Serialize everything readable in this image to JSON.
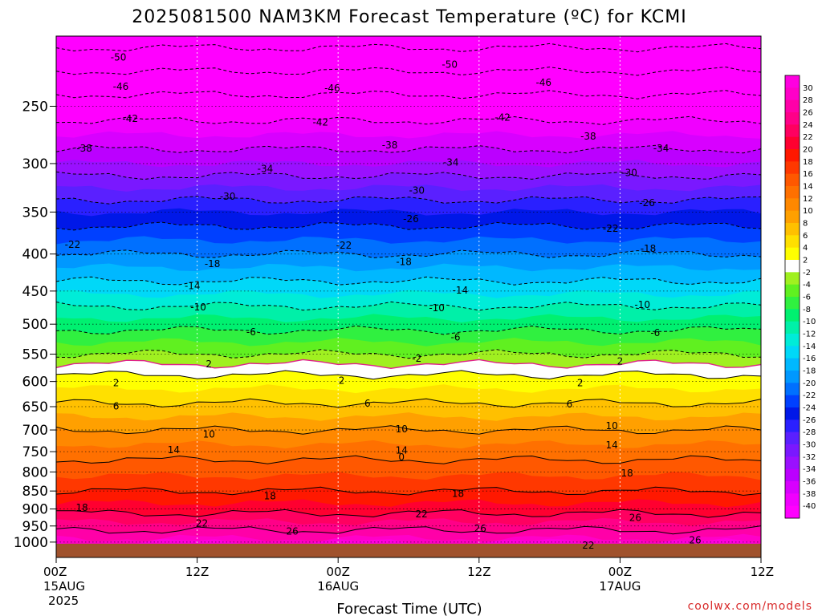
{
  "colors": {
    "bands": [
      {
        "t": -40,
        "c": "#ff00ff"
      },
      {
        "t": -38,
        "c": "#f000ff"
      },
      {
        "t": -36,
        "c": "#d800ff"
      },
      {
        "t": -34,
        "c": "#bb00ff"
      },
      {
        "t": -32,
        "c": "#9a10ff"
      },
      {
        "t": -30,
        "c": "#7a18ff"
      },
      {
        "t": -28,
        "c": "#5a20ff"
      },
      {
        "t": -26,
        "c": "#2a20ff"
      },
      {
        "t": -24,
        "c": "#0018e8"
      },
      {
        "t": -22,
        "c": "#0040ff"
      },
      {
        "t": -20,
        "c": "#0070ff"
      },
      {
        "t": -18,
        "c": "#0098ff"
      },
      {
        "t": -16,
        "c": "#00b8ff"
      },
      {
        "t": -14,
        "c": "#00d8f8"
      },
      {
        "t": -12,
        "c": "#00ecd8"
      },
      {
        "t": -10,
        "c": "#00f0a8"
      },
      {
        "t": -8,
        "c": "#00f070"
      },
      {
        "t": -6,
        "c": "#30f040"
      },
      {
        "t": -4,
        "c": "#60f020"
      },
      {
        "t": -2,
        "c": "#a0f020"
      },
      {
        "t": 0,
        "c": "#ffffff"
      },
      {
        "t": 2,
        "c": "#ffff00"
      },
      {
        "t": 4,
        "c": "#ffe000"
      },
      {
        "t": 6,
        "c": "#ffc000"
      },
      {
        "t": 8,
        "c": "#ffa000"
      },
      {
        "t": 10,
        "c": "#ff8800"
      },
      {
        "t": 12,
        "c": "#ff7000"
      },
      {
        "t": 14,
        "c": "#ff5800"
      },
      {
        "t": 16,
        "c": "#ff3800"
      },
      {
        "t": 18,
        "c": "#ff1800"
      },
      {
        "t": 20,
        "c": "#ff0030"
      },
      {
        "t": 22,
        "c": "#ff0060"
      },
      {
        "t": 24,
        "c": "#ff0088"
      },
      {
        "t": 26,
        "c": "#ff00a8"
      },
      {
        "t": 28,
        "c": "#ff00c8"
      },
      {
        "t": 30,
        "c": "#ff00e0"
      }
    ],
    "ground": "#a0522d",
    "freezing_line": "#e0208a"
  },
  "chart_data": {
    "type": "heatmap",
    "title": "2025081500 NAM3KM Forecast Temperature (ºC) for KCMI",
    "xlabel": "Forecast Time (UTC)",
    "source": "coolwx.com/models",
    "x_range_hours": [
      0,
      60
    ],
    "y_range_hpa": [
      1050,
      200
    ],
    "y_scale": "log",
    "y_ticks": [
      250,
      300,
      350,
      400,
      450,
      500,
      550,
      600,
      650,
      700,
      750,
      800,
      850,
      900,
      950,
      1000
    ],
    "y_tick_labels": [
      "250",
      "300",
      "350",
      "400",
      "450",
      "500",
      "550",
      "600",
      "650",
      "700",
      "750",
      "800",
      "850",
      "900",
      "950",
      "1000"
    ],
    "x_ticks": [
      {
        "hour": 0,
        "label": "00Z",
        "date": "15AUG",
        "year": "2025"
      },
      {
        "hour": 12,
        "label": "12Z",
        "date": "",
        "year": ""
      },
      {
        "hour": 24,
        "label": "00Z",
        "date": "16AUG",
        "year": ""
      },
      {
        "hour": 36,
        "label": "12Z",
        "date": "",
        "year": ""
      },
      {
        "hour": 48,
        "label": "00Z",
        "date": "17AUG",
        "year": ""
      },
      {
        "hour": 60,
        "label": "12Z",
        "date": "",
        "year": ""
      }
    ],
    "colorbar_labels": [
      "30",
      "28",
      "26",
      "24",
      "22",
      "20",
      "18",
      "16",
      "14",
      "12",
      "10",
      "8",
      "6",
      "4",
      "2",
      "-2",
      "-4",
      "-6",
      "-8",
      "-10",
      "-12",
      "-14",
      "-16",
      "-18",
      "-20",
      "-22",
      "-24",
      "-26",
      "-28",
      "-30",
      "-32",
      "-34",
      "-36",
      "-38",
      "-40"
    ],
    "temperature_profile": [
      {
        "p": 1000,
        "t": 29
      },
      {
        "p": 975,
        "t": 27
      },
      {
        "p": 950,
        "t": 25
      },
      {
        "p": 925,
        "t": 23
      },
      {
        "p": 900,
        "t": 21
      },
      {
        "p": 850,
        "t": 18
      },
      {
        "p": 800,
        "t": 15.5
      },
      {
        "p": 750,
        "t": 13
      },
      {
        "p": 700,
        "t": 10
      },
      {
        "p": 650,
        "t": 6.5
      },
      {
        "p": 600,
        "t": 3
      },
      {
        "p": 575,
        "t": 1
      },
      {
        "p": 560,
        "t": -1
      },
      {
        "p": 500,
        "t": -7
      },
      {
        "p": 450,
        "t": -12.5
      },
      {
        "p": 400,
        "t": -18
      },
      {
        "p": 350,
        "t": -24
      },
      {
        "p": 300,
        "t": -32
      },
      {
        "p": 250,
        "t": -40
      },
      {
        "p": 200,
        "t": -52
      }
    ],
    "contour_labels": [
      {
        "v": "-50",
        "h": 5.3,
        "p": 214
      },
      {
        "v": "-50",
        "h": 33.5,
        "p": 219
      },
      {
        "v": "-46",
        "h": 5.5,
        "p": 235
      },
      {
        "v": "-46",
        "h": 23.5,
        "p": 236
      },
      {
        "v": "-46",
        "h": 41.5,
        "p": 232
      },
      {
        "v": "-42",
        "h": 6.3,
        "p": 260
      },
      {
        "v": "-42",
        "h": 22.5,
        "p": 263
      },
      {
        "v": "-42",
        "h": 38,
        "p": 259
      },
      {
        "v": "-38",
        "h": 2.4,
        "p": 286
      },
      {
        "v": "-38",
        "h": 28.4,
        "p": 283
      },
      {
        "v": "-38",
        "h": 45.3,
        "p": 275
      },
      {
        "v": "-34",
        "h": 17.8,
        "p": 305
      },
      {
        "v": "-34",
        "h": 33.6,
        "p": 299
      },
      {
        "v": "-34",
        "h": 51.5,
        "p": 286
      },
      {
        "v": "-30",
        "h": 14.6,
        "p": 333
      },
      {
        "v": "-30",
        "h": 30.7,
        "p": 327
      },
      {
        "v": "-30",
        "h": 48.8,
        "p": 309
      },
      {
        "v": "-26",
        "h": 30.2,
        "p": 358
      },
      {
        "v": "-26",
        "h": 50.3,
        "p": 340
      },
      {
        "v": "-22",
        "h": 1.4,
        "p": 388
      },
      {
        "v": "-22",
        "h": 24.5,
        "p": 389
      },
      {
        "v": "-22",
        "h": 47.2,
        "p": 369
      },
      {
        "v": "-18",
        "h": 13.3,
        "p": 413
      },
      {
        "v": "-18",
        "h": 29.6,
        "p": 410
      },
      {
        "v": "-18",
        "h": 50.4,
        "p": 393
      },
      {
        "v": "-14",
        "h": 11.6,
        "p": 443
      },
      {
        "v": "-14",
        "h": 34.4,
        "p": 449
      },
      {
        "v": "-10",
        "h": 12.1,
        "p": 474
      },
      {
        "v": "-10",
        "h": 32.4,
        "p": 475
      },
      {
        "v": "-10",
        "h": 49.9,
        "p": 470
      },
      {
        "v": "-6",
        "h": 16.6,
        "p": 513
      },
      {
        "v": "-6",
        "h": 34.0,
        "p": 521
      },
      {
        "v": "-6",
        "h": 51.0,
        "p": 514
      },
      {
        "v": "-2",
        "h": 30.7,
        "p": 558
      },
      {
        "v": "2",
        "h": 13.0,
        "p": 568
      },
      {
        "v": "2",
        "h": 48.0,
        "p": 563
      },
      {
        "v": "2",
        "h": 5.1,
        "p": 603
      },
      {
        "v": "2",
        "h": 24.3,
        "p": 598
      },
      {
        "v": "2",
        "h": 44.6,
        "p": 603
      },
      {
        "v": "6",
        "h": 5.1,
        "p": 649
      },
      {
        "v": "6",
        "h": 26.5,
        "p": 643
      },
      {
        "v": "6",
        "h": 43.7,
        "p": 645
      },
      {
        "v": "10",
        "h": 13.0,
        "p": 710
      },
      {
        "v": "10",
        "h": 29.4,
        "p": 698
      },
      {
        "v": "10",
        "h": 47.3,
        "p": 691
      },
      {
        "v": "14",
        "h": 10.0,
        "p": 746
      },
      {
        "v": "14",
        "h": 29.4,
        "p": 747
      },
      {
        "v": "14",
        "h": 47.3,
        "p": 735
      },
      {
        "v": "0",
        "h": 29.4,
        "p": 763
      },
      {
        "v": "18",
        "h": 18.2,
        "p": 864
      },
      {
        "v": "18",
        "h": 34.2,
        "p": 857
      },
      {
        "v": "18",
        "h": 48.6,
        "p": 803
      },
      {
        "v": "18",
        "h": 2.2,
        "p": 896
      },
      {
        "v": "22",
        "h": 12.4,
        "p": 942
      },
      {
        "v": "22",
        "h": 31.1,
        "p": 915
      },
      {
        "v": "22",
        "h": 45.3,
        "p": 1010
      },
      {
        "v": "26",
        "h": 20.1,
        "p": 966
      },
      {
        "v": "26",
        "h": 36.1,
        "p": 958
      },
      {
        "v": "26",
        "h": 49.3,
        "p": 925
      },
      {
        "v": "26",
        "h": 54.4,
        "p": 994
      }
    ]
  }
}
